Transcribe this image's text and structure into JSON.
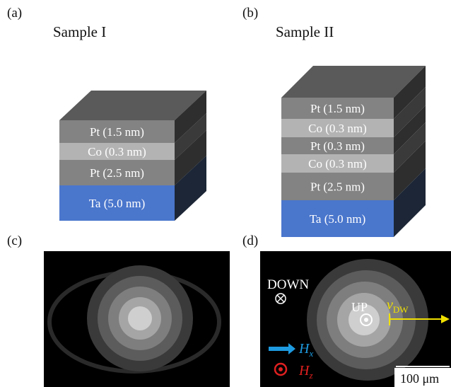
{
  "panels": [
    {
      "label": "(a)",
      "title": "Sample I",
      "layers": [
        "Pt (1.5 nm)",
        "Co (0.3 nm)",
        "Pt (2.5 nm)",
        "Ta (5.0 nm)"
      ]
    },
    {
      "label": "(b)",
      "title": "Sample II",
      "layers": [
        "Pt (1.5 nm)",
        "Co (0.3 nm)",
        "Pt (0.3 nm)",
        "Co (0.3 nm)",
        "Pt (2.5 nm)",
        "Ta (5.0 nm)"
      ]
    },
    {
      "label": "(c)"
    },
    {
      "label": "(d)",
      "down": "DOWN",
      "up": "UP",
      "velocity": "v",
      "velocity_sub": "DW",
      "field_x": "H",
      "field_x_sub": "x",
      "field_z": "H",
      "field_z_sub": "z",
      "scale": "100 μm"
    }
  ]
}
